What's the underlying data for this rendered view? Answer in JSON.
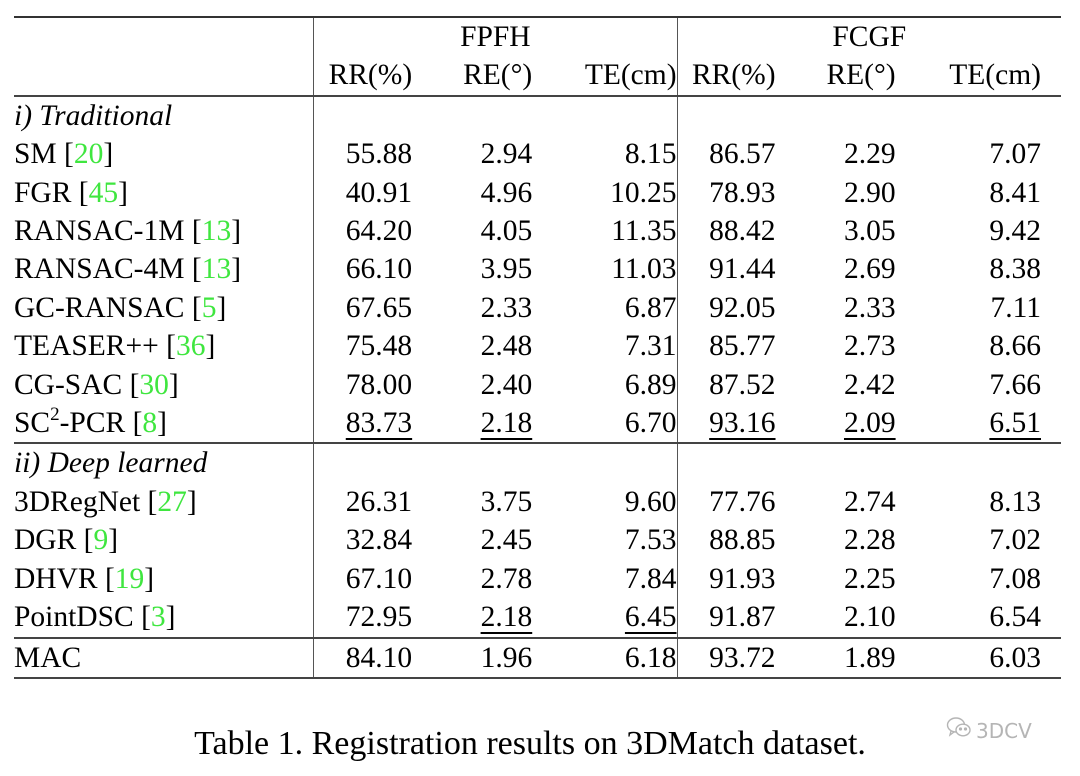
{
  "table": {
    "groups": [
      {
        "label": "FPFH"
      },
      {
        "label": "FCGF"
      }
    ],
    "columns": [
      "RR(%)",
      "RE(°)",
      "TE(cm)",
      "RR(%)",
      "RE(°)",
      "TE(cm)"
    ],
    "sections": [
      {
        "label": "i) Traditional",
        "rows": [
          {
            "method": "SM",
            "sup": "",
            "method_suffix": "",
            "cite": "20",
            "values": [
              "55.88",
              "2.94",
              "8.15",
              "86.57",
              "2.29",
              "7.07"
            ],
            "underline": [
              false,
              false,
              false,
              false,
              false,
              false
            ]
          },
          {
            "method": "FGR",
            "sup": "",
            "method_suffix": "",
            "cite": "45",
            "values": [
              "40.91",
              "4.96",
              "10.25",
              "78.93",
              "2.90",
              "8.41"
            ],
            "underline": [
              false,
              false,
              false,
              false,
              false,
              false
            ]
          },
          {
            "method": "RANSAC-1M",
            "sup": "",
            "method_suffix": "",
            "cite": "13",
            "values": [
              "64.20",
              "4.05",
              "11.35",
              "88.42",
              "3.05",
              "9.42"
            ],
            "underline": [
              false,
              false,
              false,
              false,
              false,
              false
            ]
          },
          {
            "method": "RANSAC-4M",
            "sup": "",
            "method_suffix": "",
            "cite": "13",
            "values": [
              "66.10",
              "3.95",
              "11.03",
              "91.44",
              "2.69",
              "8.38"
            ],
            "underline": [
              false,
              false,
              false,
              false,
              false,
              false
            ]
          },
          {
            "method": "GC-RANSAC",
            "sup": "",
            "method_suffix": "",
            "cite": "5",
            "values": [
              "67.65",
              "2.33",
              "6.87",
              "92.05",
              "2.33",
              "7.11"
            ],
            "underline": [
              false,
              false,
              false,
              false,
              false,
              false
            ]
          },
          {
            "method": "TEASER++",
            "sup": "",
            "method_suffix": "",
            "cite": "36",
            "values": [
              "75.48",
              "2.48",
              "7.31",
              "85.77",
              "2.73",
              "8.66"
            ],
            "underline": [
              false,
              false,
              false,
              false,
              false,
              false
            ]
          },
          {
            "method": "CG-SAC",
            "sup": "",
            "method_suffix": "",
            "cite": "30",
            "values": [
              "78.00",
              "2.40",
              "6.89",
              "87.52",
              "2.42",
              "7.66"
            ],
            "underline": [
              false,
              false,
              false,
              false,
              false,
              false
            ]
          },
          {
            "method": "SC",
            "sup": "2",
            "method_suffix": "-PCR",
            "cite": "8",
            "values": [
              "83.73",
              "2.18",
              "6.70",
              "93.16",
              "2.09",
              "6.51"
            ],
            "underline": [
              true,
              true,
              false,
              true,
              true,
              true
            ]
          }
        ]
      },
      {
        "label": "ii) Deep learned",
        "rows": [
          {
            "method": "3DRegNet",
            "sup": "",
            "method_suffix": "",
            "cite": "27",
            "values": [
              "26.31",
              "3.75",
              "9.60",
              "77.76",
              "2.74",
              "8.13"
            ],
            "underline": [
              false,
              false,
              false,
              false,
              false,
              false
            ]
          },
          {
            "method": "DGR",
            "sup": "",
            "method_suffix": "",
            "cite": "9",
            "values": [
              "32.84",
              "2.45",
              "7.53",
              "88.85",
              "2.28",
              "7.02"
            ],
            "underline": [
              false,
              false,
              false,
              false,
              false,
              false
            ]
          },
          {
            "method": "DHVR",
            "sup": "",
            "method_suffix": "",
            "cite": "19",
            "values": [
              "67.10",
              "2.78",
              "7.84",
              "91.93",
              "2.25",
              "7.08"
            ],
            "underline": [
              false,
              false,
              false,
              false,
              false,
              false
            ]
          },
          {
            "method": "PointDSC",
            "sup": "",
            "method_suffix": "",
            "cite": "3",
            "values": [
              "72.95",
              "2.18",
              "6.45",
              "91.87",
              "2.10",
              "6.54"
            ],
            "underline": [
              false,
              true,
              true,
              false,
              false,
              false
            ]
          }
        ]
      }
    ],
    "final_row": {
      "method": "MAC",
      "values": [
        "84.10",
        "1.96",
        "6.18",
        "93.72",
        "1.89",
        "6.03"
      ],
      "bold": true
    }
  },
  "caption": "Table 1. Registration results on 3DMatch dataset.",
  "watermark": {
    "icon": "wechat-icon",
    "text": "3DCV"
  },
  "colors": {
    "citation": "#3fe63f",
    "rules": "#333333",
    "watermark": "#b5b5b5"
  }
}
